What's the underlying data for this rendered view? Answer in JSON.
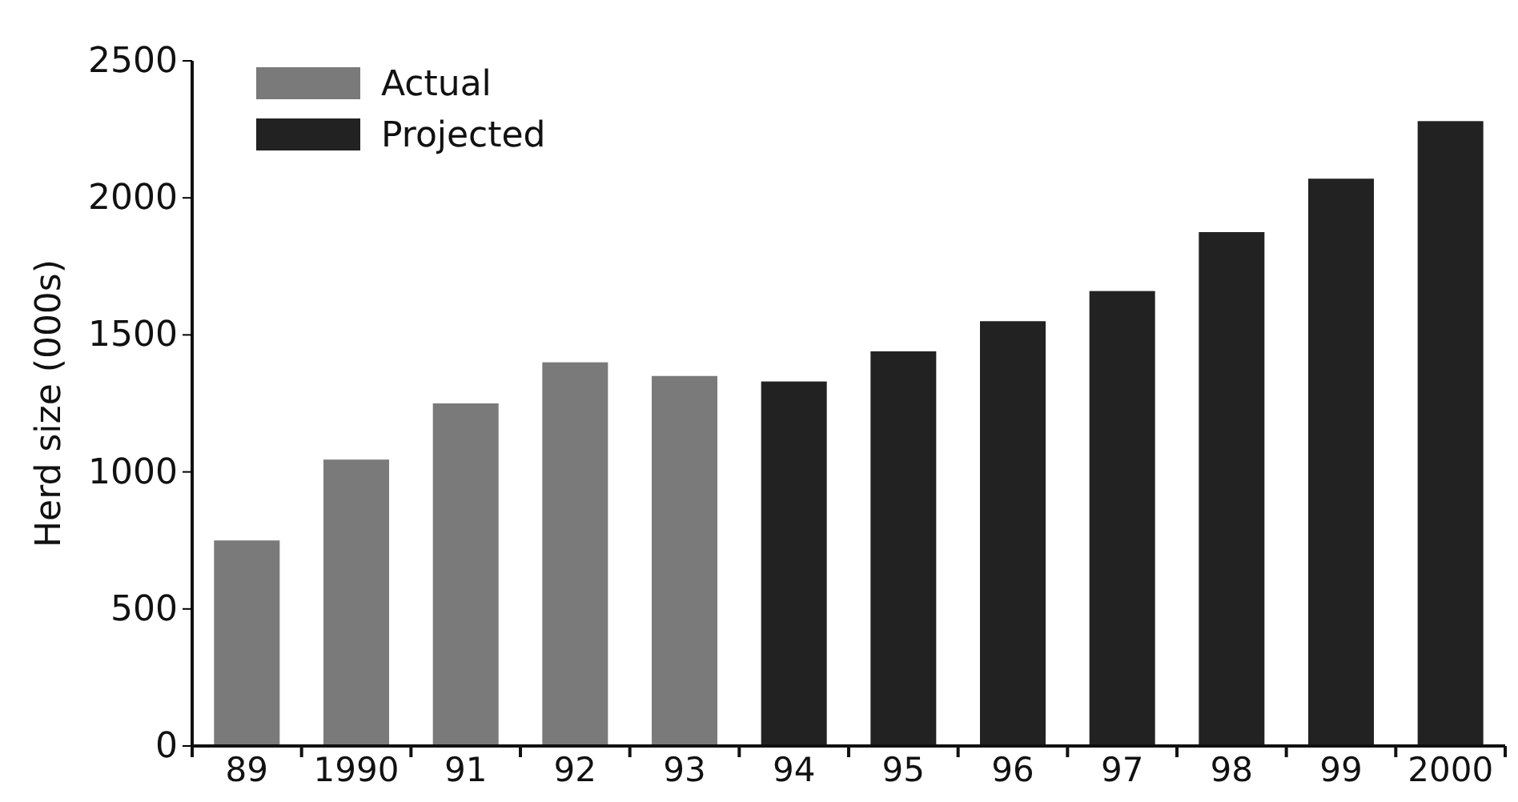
{
  "chart_data": {
    "type": "bar",
    "ylabel": "Herd size (000s)",
    "categories": [
      "89",
      "1990",
      "91",
      "92",
      "93",
      "94",
      "95",
      "96",
      "97",
      "98",
      "99",
      "2000"
    ],
    "series": [
      {
        "name": "Actual",
        "color": "#7a7a7a",
        "values": [
          750,
          1045,
          1250,
          1400,
          1350,
          null,
          null,
          null,
          null,
          null,
          null,
          null
        ]
      },
      {
        "name": "Projected",
        "color": "#222222",
        "values": [
          null,
          null,
          null,
          null,
          null,
          1330,
          1440,
          1550,
          1660,
          1875,
          2070,
          2280
        ]
      }
    ],
    "ylim": [
      0,
      2500
    ],
    "yticks": [
      0,
      500,
      1000,
      1500,
      2000,
      2500
    ],
    "legend": "top left",
    "grid": false
  }
}
